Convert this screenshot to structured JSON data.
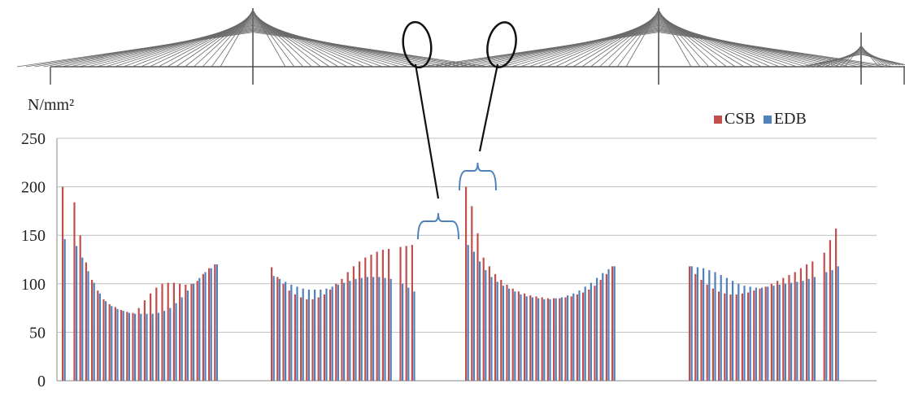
{
  "chart_data": {
    "type": "bar",
    "unit_label": "N/mm²",
    "ylim": [
      0,
      250
    ],
    "yticks": [
      0,
      50,
      100,
      150,
      200,
      250
    ],
    "grid": true,
    "legend_position": "top-right",
    "series": [
      {
        "name": "CSB",
        "color": "#c0504d",
        "groups": [
          [
            200,
            0,
            184,
            150,
            122,
            104,
            93,
            84,
            79,
            76,
            73,
            71,
            70,
            75,
            83,
            90,
            96,
            100,
            101,
            101,
            100,
            99,
            100,
            103,
            110,
            116,
            120
          ],
          [
            117,
            107,
            100,
            93,
            89,
            86,
            84,
            84,
            86,
            89,
            94,
            100,
            105,
            112,
            118,
            123,
            127,
            130,
            133,
            135,
            136,
            0,
            138,
            139,
            140
          ],
          [
            200,
            180,
            152,
            127,
            118,
            110,
            104,
            99,
            95,
            92,
            90,
            88,
            87,
            86,
            85,
            85,
            85,
            86,
            87,
            89,
            91,
            94,
            98,
            104,
            110,
            118
          ],
          [
            118,
            110,
            104,
            99,
            95,
            92,
            90,
            89,
            89,
            90,
            91,
            93,
            95,
            97,
            100,
            103,
            106,
            109,
            112,
            116,
            120,
            123,
            0,
            132,
            145,
            157
          ]
        ]
      },
      {
        "name": "EDB",
        "color": "#4f81bd",
        "groups": [
          [
            146,
            0,
            139,
            127,
            113,
            101,
            90,
            82,
            77,
            74,
            72,
            70,
            69,
            69,
            69,
            69,
            70,
            72,
            75,
            80,
            86,
            93,
            100,
            106,
            112,
            116,
            120
          ],
          [
            108,
            105,
            102,
            99,
            97,
            95,
            94,
            94,
            94,
            95,
            97,
            99,
            101,
            103,
            105,
            106,
            107,
            107,
            107,
            106,
            105,
            0,
            100,
            96,
            92
          ],
          [
            140,
            133,
            123,
            114,
            107,
            102,
            98,
            95,
            92,
            89,
            87,
            86,
            85,
            84,
            84,
            85,
            86,
            88,
            90,
            93,
            97,
            101,
            106,
            111,
            115,
            118
          ],
          [
            118,
            117,
            116,
            114,
            112,
            109,
            106,
            103,
            100,
            98,
            97,
            96,
            96,
            97,
            98,
            99,
            100,
            101,
            102,
            103,
            105,
            107,
            0,
            112,
            114,
            118
          ]
        ]
      }
    ]
  }
}
